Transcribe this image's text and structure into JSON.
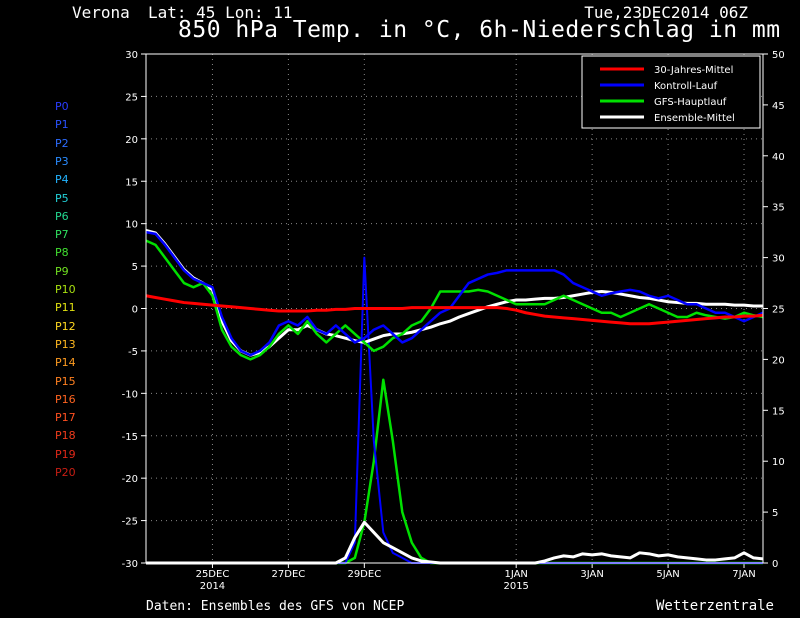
{
  "header": {
    "station": "Verona",
    "latlon": "Lat: 45 Lon: 11",
    "date": "Tue,23DEC2014 06Z",
    "title": "850 hPa Temp. in °C, 6h-Niederschlag in mm"
  },
  "footer": {
    "source": "Daten: Ensembles des GFS von NCEP",
    "brand": "Wetterzentrale"
  },
  "members": [
    {
      "label": "P0",
      "color": "#2a3cff"
    },
    {
      "label": "P1",
      "color": "#2a52ff"
    },
    {
      "label": "P2",
      "color": "#2c6cff"
    },
    {
      "label": "P3",
      "color": "#2a8cff"
    },
    {
      "label": "P4",
      "color": "#22b4ff"
    },
    {
      "label": "P5",
      "color": "#22d0d8"
    },
    {
      "label": "P6",
      "color": "#22d890"
    },
    {
      "label": "P7",
      "color": "#30e060"
    },
    {
      "label": "P8",
      "color": "#40e030"
    },
    {
      "label": "P9",
      "color": "#70e020"
    },
    {
      "label": "P10",
      "color": "#a8e010"
    },
    {
      "label": "P11",
      "color": "#e0e010"
    },
    {
      "label": "P12",
      "color": "#ffd820"
    },
    {
      "label": "P13",
      "color": "#ffb820"
    },
    {
      "label": "P14",
      "color": "#ff9c20"
    },
    {
      "label": "P15",
      "color": "#ff8020"
    },
    {
      "label": "P16",
      "color": "#ff6420"
    },
    {
      "label": "P17",
      "color": "#ff5020"
    },
    {
      "label": "P18",
      "color": "#f03c1c"
    },
    {
      "label": "P19",
      "color": "#e02818"
    },
    {
      "label": "P20",
      "color": "#c81e14"
    }
  ],
  "chart_data": {
    "type": "line",
    "x_axis": {
      "start": "2014-12-23 06Z",
      "step_hours": 6,
      "steps": 65,
      "ticks": [
        {
          "step": 7,
          "label": "25DEC",
          "label2": "2014"
        },
        {
          "step": 15,
          "label": "27DEC",
          "label2": ""
        },
        {
          "step": 23,
          "label": "29DEC",
          "label2": ""
        },
        {
          "step": 39,
          "label": "1JAN",
          "label2": "2015"
        },
        {
          "step": 47,
          "label": "3JAN",
          "label2": ""
        },
        {
          "step": 55,
          "label": "5JAN",
          "label2": ""
        },
        {
          "step": 63,
          "label": "7JAN",
          "label2": ""
        }
      ]
    },
    "y_left": {
      "min": -30,
      "max": 30,
      "ticks": [
        30,
        25,
        20,
        15,
        10,
        5,
        0,
        -5,
        -10,
        -15,
        -20,
        -25,
        -30
      ],
      "unit": "°C"
    },
    "y_right": {
      "min": 0,
      "max": 50,
      "ticks": [
        50,
        45,
        40,
        35,
        30,
        25,
        20,
        15,
        10,
        5,
        0
      ],
      "unit": "mm"
    },
    "grid": true,
    "legend_position": "top-right",
    "legend": [
      {
        "name": "30-Jahres-Mittel",
        "color": "#ff0000"
      },
      {
        "name": "Kontroll-Lauf",
        "color": "#0000ff"
      },
      {
        "name": "GFS-Hauptlauf",
        "color": "#00e000"
      },
      {
        "name": "Ensemble-Mittel",
        "color": "#ffffff"
      }
    ],
    "temperature_series": [
      {
        "name": "30-Jahres-Mittel",
        "color": "#ff0000",
        "width": 3,
        "values": [
          1.5,
          1.3,
          1.1,
          0.9,
          0.7,
          0.6,
          0.5,
          0.4,
          0.3,
          0.2,
          0.1,
          0.0,
          -0.1,
          -0.2,
          -0.3,
          -0.3,
          -0.3,
          -0.3,
          -0.2,
          -0.2,
          -0.1,
          -0.1,
          0.0,
          0.0,
          0.0,
          0.0,
          0.0,
          0.0,
          0.1,
          0.1,
          0.1,
          0.1,
          0.1,
          0.1,
          0.1,
          0.1,
          0.1,
          0.1,
          0.0,
          -0.2,
          -0.5,
          -0.7,
          -0.9,
          -1.0,
          -1.1,
          -1.2,
          -1.3,
          -1.4,
          -1.5,
          -1.6,
          -1.7,
          -1.8,
          -1.8,
          -1.8,
          -1.7,
          -1.6,
          -1.5,
          -1.4,
          -1.3,
          -1.2,
          -1.1,
          -1.0,
          -1.0,
          -0.9,
          -0.9,
          -0.8
        ]
      },
      {
        "name": "Kontroll-Lauf",
        "color": "#0000ff",
        "width": 2.5,
        "values": [
          9.0,
          8.8,
          7.5,
          6.0,
          4.5,
          3.5,
          3.0,
          2.5,
          -1.0,
          -3.5,
          -5.0,
          -5.5,
          -5.0,
          -4.0,
          -2.0,
          -1.5,
          -2.0,
          -1.0,
          -2.5,
          -3.0,
          -2.0,
          -3.0,
          -4.0,
          -3.5,
          -2.5,
          -2.0,
          -3.0,
          -4.0,
          -3.5,
          -2.5,
          -1.5,
          -0.5,
          0.0,
          1.5,
          3.0,
          3.5,
          4.0,
          4.2,
          4.5,
          4.5,
          4.5,
          4.5,
          4.5,
          4.5,
          4.0,
          3.0,
          2.5,
          2.0,
          1.5,
          1.8,
          2.0,
          2.2,
          2.0,
          1.5,
          1.2,
          1.5,
          1.0,
          0.5,
          0.5,
          0.0,
          -0.5,
          -0.5,
          -1.0,
          -1.5,
          -1.0,
          -0.5
        ]
      },
      {
        "name": "GFS-Hauptlauf",
        "color": "#00e000",
        "width": 2.5,
        "values": [
          8.0,
          7.5,
          6.0,
          4.5,
          3.0,
          2.5,
          3.0,
          1.5,
          -2.5,
          -4.5,
          -5.5,
          -6.0,
          -5.5,
          -4.5,
          -3.0,
          -2.0,
          -3.0,
          -1.5,
          -3.0,
          -4.0,
          -3.0,
          -2.0,
          -3.0,
          -4.0,
          -5.0,
          -4.5,
          -3.5,
          -3.0,
          -2.0,
          -1.5,
          0.0,
          2.0,
          2.0,
          2.0,
          2.0,
          2.2,
          2.0,
          1.5,
          1.0,
          0.5,
          0.5,
          0.5,
          0.5,
          1.0,
          1.5,
          1.0,
          0.5,
          0.0,
          -0.5,
          -0.5,
          -1.0,
          -0.5,
          0.0,
          0.5,
          0.0,
          -0.5,
          -1.0,
          -1.0,
          -0.5,
          -0.8,
          -1.0,
          -1.2,
          -1.0,
          -0.5,
          -0.8,
          -1.0
        ]
      },
      {
        "name": "Ensemble-Mittel",
        "color": "#ffffff",
        "width": 3,
        "values": [
          9.2,
          8.9,
          7.6,
          6.1,
          4.6,
          3.6,
          3.0,
          2.2,
          -1.5,
          -3.8,
          -5.0,
          -5.5,
          -5.2,
          -4.5,
          -3.5,
          -2.5,
          -2.5,
          -2.0,
          -2.5,
          -3.0,
          -3.2,
          -3.5,
          -3.8,
          -4.0,
          -3.6,
          -3.2,
          -3.0,
          -3.0,
          -2.8,
          -2.5,
          -2.2,
          -1.8,
          -1.5,
          -1.0,
          -0.6,
          -0.2,
          0.2,
          0.5,
          0.8,
          1.0,
          1.0,
          1.1,
          1.2,
          1.2,
          1.3,
          1.5,
          1.7,
          1.9,
          2.0,
          1.9,
          1.7,
          1.5,
          1.3,
          1.2,
          1.0,
          0.8,
          0.7,
          0.6,
          0.6,
          0.5,
          0.5,
          0.5,
          0.4,
          0.4,
          0.3,
          0.3
        ]
      }
    ],
    "precipitation_series": [
      {
        "name": "GFS-Hauptlauf",
        "color": "#00e000",
        "width": 2.5,
        "values": [
          0,
          0,
          0,
          0,
          0,
          0,
          0,
          0,
          0,
          0,
          0,
          0,
          0,
          0,
          0,
          0,
          0,
          0,
          0,
          0,
          0,
          0,
          0.5,
          4,
          10,
          18,
          12,
          5,
          2,
          0.5,
          0,
          0,
          0,
          0,
          0,
          0,
          0,
          0,
          0,
          0,
          0,
          0,
          0,
          0,
          0,
          0,
          0,
          0,
          0,
          0,
          0,
          0,
          0,
          0,
          0,
          0,
          0,
          0,
          0,
          0,
          0,
          0,
          0,
          0,
          0,
          0
        ]
      },
      {
        "name": "Kontroll-Lauf",
        "color": "#0000ff",
        "width": 2,
        "values": [
          0,
          0,
          0,
          0,
          0,
          0,
          0,
          0,
          0,
          0,
          0,
          0,
          0,
          0,
          0,
          0,
          0,
          0,
          0,
          0,
          0,
          0,
          2,
          30,
          12,
          3,
          1,
          0.5,
          0,
          0,
          0,
          0,
          0,
          0,
          0,
          0,
          0,
          0,
          0,
          0,
          0,
          0,
          0,
          0,
          0,
          0,
          0,
          0,
          0,
          0,
          0,
          0,
          0,
          0,
          0,
          0,
          0,
          0,
          0,
          0,
          0,
          0,
          0,
          0,
          0,
          0
        ]
      },
      {
        "name": "Ensemble-Mittel",
        "color": "#ffffff",
        "width": 3,
        "values": [
          0,
          0,
          0,
          0,
          0,
          0,
          0,
          0,
          0,
          0,
          0,
          0,
          0,
          0,
          0,
          0,
          0,
          0,
          0,
          0,
          0,
          0.5,
          2.5,
          4.0,
          3.0,
          2.0,
          1.5,
          1.0,
          0.5,
          0.2,
          0.1,
          0,
          0,
          0,
          0,
          0,
          0,
          0,
          0,
          0,
          0,
          0,
          0.2,
          0.5,
          0.7,
          0.6,
          0.9,
          0.8,
          0.9,
          0.7,
          0.6,
          0.5,
          1.0,
          0.9,
          0.7,
          0.8,
          0.6,
          0.5,
          0.4,
          0.3,
          0.3,
          0.4,
          0.5,
          1.0,
          0.5,
          0.4
        ]
      }
    ]
  }
}
